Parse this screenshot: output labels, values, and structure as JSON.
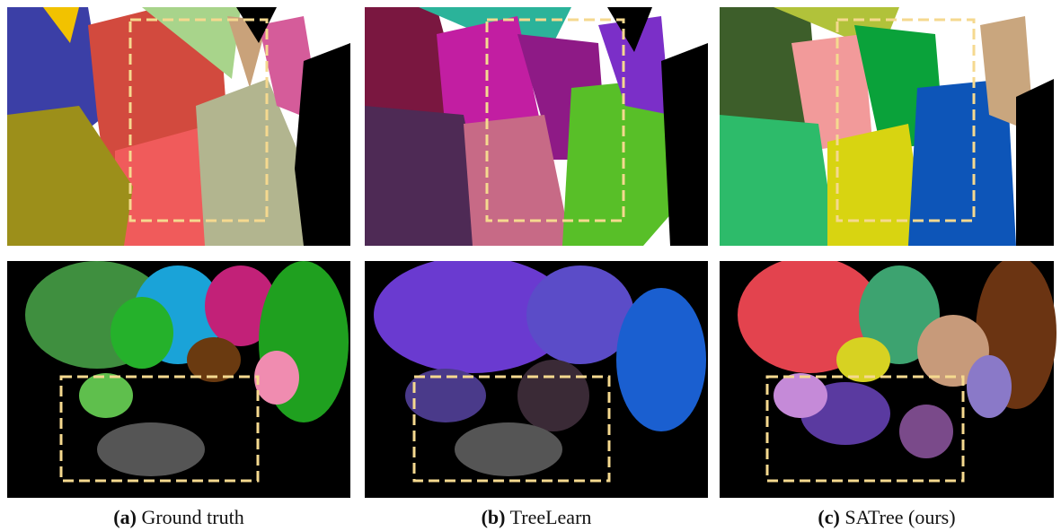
{
  "panels": [
    {
      "label": "(a)",
      "caption": "Ground truth"
    },
    {
      "label": "(b)",
      "caption": "TreeLearn"
    },
    {
      "label": "(c)",
      "caption": "SATree (ours)"
    }
  ]
}
